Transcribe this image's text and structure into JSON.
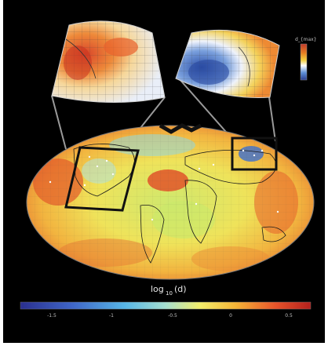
{
  "colorbar": {
    "title_prefix": "log",
    "title_sub": "10",
    "title_suffix": "(d)",
    "ticks": [
      "-1.5",
      "-1",
      "-0.5",
      "0",
      "0.5"
    ],
    "colors": [
      "#2a2f8f",
      "#3f66c8",
      "#57b6e6",
      "#a6dfd0",
      "#f4ee6a",
      "#f5b537",
      "#e8532a",
      "#b3201d"
    ]
  },
  "inset_colorbar": {
    "label": "d_{max}",
    "colors": [
      "#c0392b",
      "#e67e22",
      "#f4d03f",
      "#ffffff",
      "#5d8fd6",
      "#2c3e8f"
    ]
  },
  "map": {
    "ocean_colors": [
      "#f2c94c",
      "#e9e25a",
      "#d6ec6f",
      "#e8a33a",
      "#d95a2b"
    ],
    "land_outline": "#1a1a1a",
    "highlight_box_color": "#111111"
  }
}
